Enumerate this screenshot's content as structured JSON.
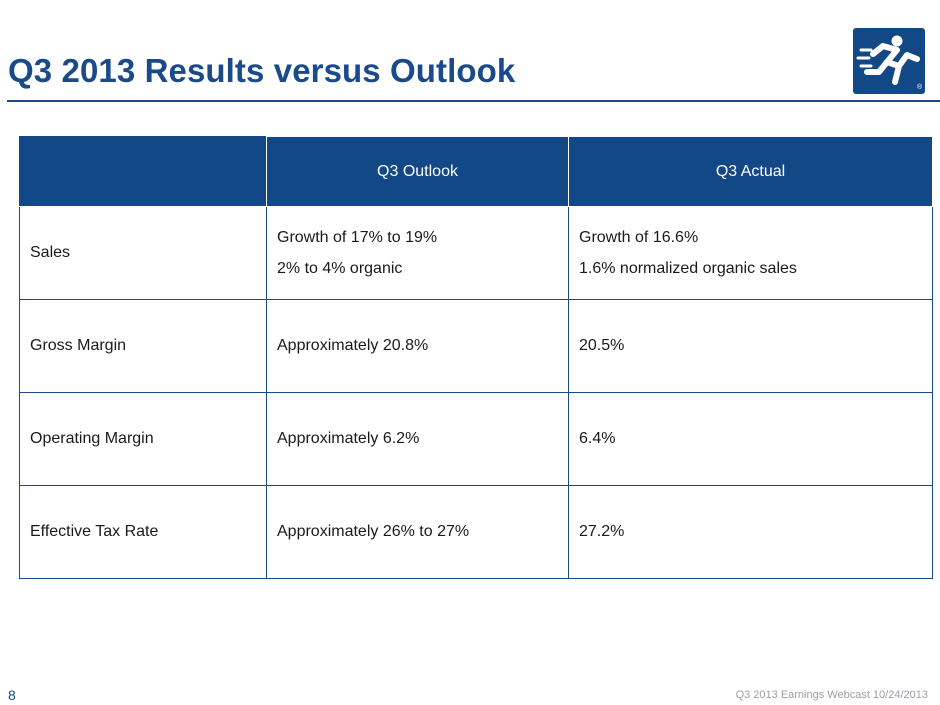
{
  "slide": {
    "title": "Q3 2013 Results versus Outlook",
    "page_number": "8",
    "footer": "Q3 2013 Earnings Webcast 10/24/2013"
  },
  "logo": {
    "icon": "running-man-icon",
    "mark": "®"
  },
  "colors": {
    "brand_blue": "#1b4a8a",
    "header_fill": "#134886",
    "footer_gray": "#9aa0a8"
  },
  "table": {
    "headers": [
      "",
      "Q3 Outlook",
      "Q3 Actual"
    ],
    "rows": [
      {
        "metric": "Sales",
        "outlook": [
          "Growth of 17% to 19%",
          "2% to 4% organic"
        ],
        "actual": [
          "Growth of 16.6%",
          "1.6% normalized organic sales"
        ]
      },
      {
        "metric": "Gross Margin",
        "outlook": [
          "Approximately 20.8%"
        ],
        "actual": [
          "20.5%"
        ]
      },
      {
        "metric": "Operating Margin",
        "outlook": [
          "Approximately 6.2%"
        ],
        "actual": [
          "6.4%"
        ]
      },
      {
        "metric": "Effective Tax Rate",
        "outlook": [
          "Approximately 26% to 27%"
        ],
        "actual": [
          "27.2%"
        ]
      }
    ]
  }
}
